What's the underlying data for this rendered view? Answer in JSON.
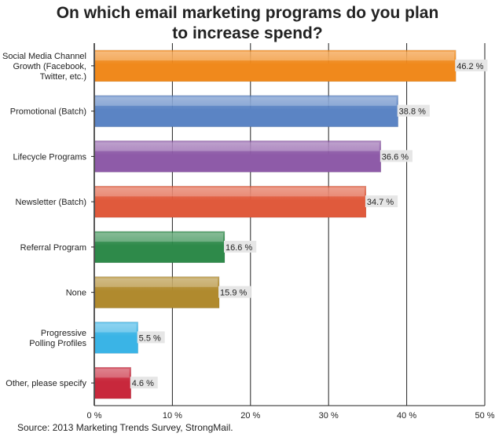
{
  "chart_data": {
    "type": "bar",
    "orientation": "horizontal",
    "title_lines": [
      "On which email marketing programs do you plan",
      "to increase spend?"
    ],
    "categories": [
      [
        "Social Media Channel",
        "Growth (Facebook,",
        "Twitter, etc.)"
      ],
      [
        "Promotional (Batch)"
      ],
      [
        "Lifecycle Programs"
      ],
      [
        "Newsletter (Batch)"
      ],
      [
        "Referral Program"
      ],
      [
        "None"
      ],
      [
        "Progressive",
        "Polling Profiles"
      ],
      [
        "Other, please specify"
      ]
    ],
    "values": [
      46.2,
      38.8,
      36.6,
      34.7,
      16.6,
      15.9,
      5.5,
      4.6
    ],
    "value_labels": [
      "46.2 %",
      "38.8 %",
      "36.6 %",
      "34.7 %",
      "16.6 %",
      "15.9 %",
      "5.5 %",
      "4.6 %"
    ],
    "bar_colors": [
      "#F0891C",
      "#5B84C4",
      "#8E5BA8",
      "#E05A3C",
      "#2E8A4A",
      "#B08A2E",
      "#3AB4E6",
      "#C8283C"
    ],
    "xlim": [
      0,
      50
    ],
    "xticks": [
      0,
      10,
      20,
      30,
      40,
      50
    ],
    "xtick_labels": [
      "0 %",
      "10 %",
      "20 %",
      "30 %",
      "40 %",
      "50 %"
    ],
    "grid": true,
    "source": "Source: 2013 Marketing Trends Survey, StrongMail."
  }
}
